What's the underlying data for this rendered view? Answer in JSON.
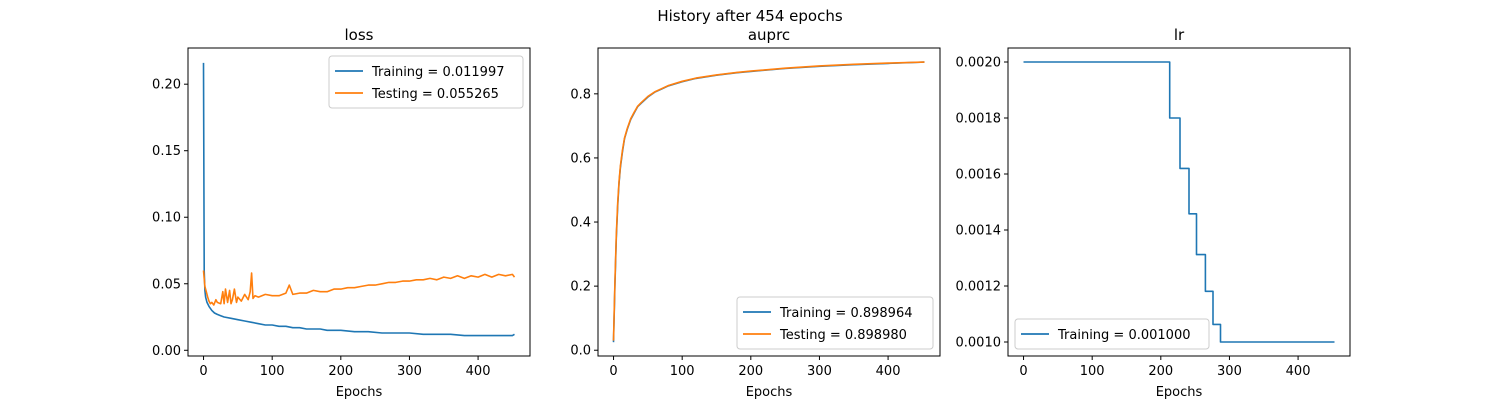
{
  "suptitle": "History after 454 epochs",
  "colors": {
    "training": "#1f77b4",
    "testing": "#ff7f0e"
  },
  "chart_data": [
    {
      "type": "line",
      "title": "loss",
      "xlabel": "Epochs",
      "ylabel": "",
      "xlim": [
        -22.65,
        475.65
      ],
      "ylim": [
        -0.0043,
        0.2272
      ],
      "xticks": [
        0,
        100,
        200,
        300,
        400
      ],
      "yticks": [
        0.0,
        0.05,
        0.1,
        0.15,
        0.2
      ],
      "ytick_labels": [
        "0.00",
        "0.05",
        "0.10",
        "0.15",
        "0.20"
      ],
      "legend_position": "top-right",
      "series": [
        {
          "name": "Training = 0.011997",
          "color": "#1f77b4",
          "x": [
            0,
            1,
            2,
            3,
            5,
            8,
            12,
            16,
            20,
            25,
            30,
            40,
            50,
            60,
            70,
            80,
            90,
            100,
            110,
            120,
            130,
            140,
            150,
            160,
            170,
            180,
            190,
            200,
            220,
            240,
            260,
            280,
            300,
            320,
            340,
            360,
            380,
            400,
            420,
            440,
            450,
            453
          ],
          "y": [
            0.216,
            0.06,
            0.045,
            0.04,
            0.036,
            0.033,
            0.03,
            0.028,
            0.027,
            0.026,
            0.025,
            0.024,
            0.023,
            0.022,
            0.021,
            0.02,
            0.019,
            0.019,
            0.018,
            0.018,
            0.017,
            0.017,
            0.016,
            0.016,
            0.016,
            0.015,
            0.015,
            0.015,
            0.014,
            0.014,
            0.013,
            0.013,
            0.013,
            0.012,
            0.012,
            0.012,
            0.011,
            0.011,
            0.011,
            0.011,
            0.011,
            0.012
          ]
        },
        {
          "name": "Testing = 0.055265",
          "color": "#ff7f0e",
          "x": [
            0,
            2,
            4,
            6,
            8,
            10,
            12,
            15,
            18,
            20,
            25,
            28,
            30,
            32,
            35,
            38,
            40,
            42,
            45,
            48,
            50,
            55,
            60,
            65,
            68,
            70,
            72,
            75,
            80,
            90,
            100,
            110,
            120,
            125,
            130,
            140,
            150,
            160,
            170,
            180,
            190,
            200,
            210,
            220,
            230,
            240,
            250,
            260,
            270,
            280,
            290,
            300,
            310,
            320,
            330,
            340,
            350,
            360,
            370,
            380,
            390,
            400,
            410,
            420,
            430,
            440,
            450,
            453
          ],
          "y": [
            0.06,
            0.048,
            0.044,
            0.04,
            0.037,
            0.035,
            0.036,
            0.034,
            0.038,
            0.036,
            0.035,
            0.044,
            0.035,
            0.046,
            0.036,
            0.045,
            0.035,
            0.038,
            0.046,
            0.036,
            0.04,
            0.037,
            0.042,
            0.038,
            0.044,
            0.058,
            0.039,
            0.041,
            0.04,
            0.042,
            0.041,
            0.041,
            0.043,
            0.049,
            0.042,
            0.043,
            0.043,
            0.045,
            0.044,
            0.044,
            0.046,
            0.046,
            0.047,
            0.047,
            0.048,
            0.049,
            0.049,
            0.05,
            0.051,
            0.051,
            0.052,
            0.052,
            0.053,
            0.053,
            0.054,
            0.053,
            0.055,
            0.054,
            0.056,
            0.054,
            0.056,
            0.055,
            0.057,
            0.055,
            0.057,
            0.056,
            0.057,
            0.055
          ]
        }
      ]
    },
    {
      "type": "line",
      "title": "auprc",
      "xlabel": "Epochs",
      "ylabel": "",
      "xlim": [
        -22.65,
        475.65
      ],
      "ylim": [
        -0.018,
        0.943
      ],
      "xticks": [
        0,
        100,
        200,
        300,
        400
      ],
      "yticks": [
        0.0,
        0.2,
        0.4,
        0.6,
        0.8
      ],
      "ytick_labels": [
        "0.0",
        "0.2",
        "0.4",
        "0.6",
        "0.8"
      ],
      "legend_position": "bottom-right",
      "series": [
        {
          "name": "Training = 0.898964",
          "color": "#1f77b4",
          "x": [
            0,
            2,
            4,
            6,
            8,
            10,
            13,
            16,
            20,
            25,
            30,
            35,
            40,
            50,
            60,
            70,
            80,
            100,
            120,
            150,
            180,
            200,
            250,
            300,
            350,
            400,
            453
          ],
          "y": [
            0.025,
            0.2,
            0.35,
            0.45,
            0.52,
            0.57,
            0.62,
            0.66,
            0.69,
            0.72,
            0.74,
            0.76,
            0.77,
            0.79,
            0.805,
            0.815,
            0.825,
            0.838,
            0.848,
            0.858,
            0.866,
            0.87,
            0.879,
            0.886,
            0.891,
            0.895,
            0.899
          ]
        },
        {
          "name": "Testing = 0.898980",
          "color": "#ff7f0e",
          "x": [
            0,
            2,
            4,
            6,
            8,
            10,
            13,
            16,
            20,
            25,
            30,
            35,
            40,
            50,
            60,
            70,
            80,
            100,
            120,
            150,
            180,
            200,
            250,
            300,
            350,
            400,
            453
          ],
          "y": [
            0.03,
            0.21,
            0.36,
            0.46,
            0.525,
            0.575,
            0.625,
            0.662,
            0.692,
            0.722,
            0.742,
            0.761,
            0.772,
            0.792,
            0.806,
            0.816,
            0.826,
            0.839,
            0.849,
            0.859,
            0.867,
            0.871,
            0.88,
            0.887,
            0.892,
            0.896,
            0.899
          ]
        }
      ]
    },
    {
      "type": "line",
      "title": "lr",
      "xlabel": "Epochs",
      "ylabel": "",
      "xlim": [
        -22.65,
        475.65
      ],
      "ylim": [
        0.00095,
        0.00205
      ],
      "xticks": [
        0,
        100,
        200,
        300,
        400
      ],
      "yticks": [
        0.001,
        0.0012,
        0.0014,
        0.0016,
        0.0018,
        0.002
      ],
      "ytick_labels": [
        "0.0010",
        "0.0012",
        "0.0014",
        "0.0016",
        "0.0018",
        "0.0020"
      ],
      "legend_position": "bottom-left",
      "series": [
        {
          "name": "Training = 0.001000",
          "color": "#1f77b4",
          "x": [
            0,
            213,
            213,
            228,
            228,
            241,
            241,
            252,
            252,
            265,
            265,
            276,
            276,
            287,
            287,
            297,
            297,
            453
          ],
          "y": [
            0.002,
            0.002,
            0.0018,
            0.0018,
            0.00162,
            0.00162,
            0.001458,
            0.001458,
            0.001312,
            0.001312,
            0.001181,
            0.001181,
            0.001063,
            0.001063,
            0.001,
            0.001,
            0.001,
            0.001
          ]
        }
      ]
    }
  ]
}
